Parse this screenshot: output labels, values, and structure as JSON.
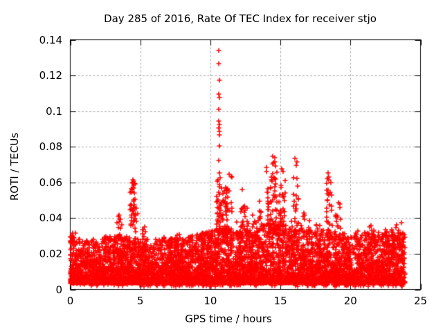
{
  "window": {
    "background": "#ffffff",
    "text_color": "#000000"
  },
  "chart_data": {
    "type": "scatter",
    "title": "Day 285 of 2016, Rate Of TEC Index for receiver stjo",
    "xlabel": "GPS time / hours",
    "ylabel": "ROTI / TECUs",
    "xlim": [
      0,
      25
    ],
    "ylim": [
      0,
      0.14
    ],
    "x_ticks": {
      "values": [
        0,
        5,
        10,
        15,
        20,
        25
      ],
      "labels": [
        "0",
        "5",
        "10",
        "15",
        "20",
        "25"
      ]
    },
    "y_ticks": {
      "values": [
        0,
        0.02,
        0.04,
        0.06,
        0.08,
        0.1,
        0.12,
        0.14
      ],
      "labels": [
        "0",
        "0.02",
        "0.04",
        "0.06",
        "0.08",
        "0.1",
        "0.12",
        "0.14"
      ]
    },
    "grid": {
      "show": true,
      "color": "#aaaaaa",
      "dash": [
        3,
        2.5
      ],
      "x_lines": [
        5,
        10,
        15,
        20
      ],
      "y_lines": [
        0.02,
        0.04,
        0.06,
        0.08,
        0.1,
        0.12
      ]
    },
    "axis_color": "#000000",
    "tick_length": 8,
    "marker": {
      "shape": "plus",
      "color": "#ff0000",
      "size": 7,
      "stroke": 1.6
    },
    "legend": {
      "show": false
    },
    "time_range": [
      0,
      23.9
    ],
    "render_seed": 7,
    "baseline": {
      "n": 6500,
      "y_min": 0.0035,
      "shape": 2.2,
      "low_fraction": 0.03
    },
    "envelope": [
      0.03,
      0.027,
      0.029,
      0.03,
      0.03,
      0.028,
      0.028,
      0.029,
      0.03,
      0.031,
      0.033,
      0.035,
      0.033,
      0.034,
      0.037,
      0.037,
      0.035,
      0.033,
      0.035,
      0.033,
      0.03,
      0.032,
      0.032,
      0.033,
      0.033
    ],
    "clusters": [
      [
        0.0,
        0.4,
        10,
        0.026,
        0.032
      ],
      [
        2.3,
        2.75,
        8,
        0.026,
        0.031
      ],
      [
        3.2,
        3.75,
        16,
        0.028,
        0.0415
      ],
      [
        4.28,
        4.62,
        40,
        0.035,
        0.061
      ],
      [
        4.63,
        4.8,
        8,
        0.03,
        0.046
      ],
      [
        5.1,
        5.4,
        7,
        0.028,
        0.036
      ],
      [
        6.4,
        6.75,
        6,
        0.026,
        0.03
      ],
      [
        7.4,
        7.85,
        8,
        0.026,
        0.0315
      ],
      [
        8.3,
        8.75,
        8,
        0.026,
        0.0315
      ],
      [
        9.15,
        9.6,
        10,
        0.027,
        0.032
      ],
      [
        9.9,
        10.25,
        8,
        0.027,
        0.033
      ],
      [
        10.45,
        10.8,
        38,
        0.03,
        0.063
      ],
      [
        10.85,
        11.25,
        42,
        0.03,
        0.058
      ],
      [
        11.3,
        11.55,
        9,
        0.03,
        0.065
      ],
      [
        11.6,
        11.95,
        8,
        0.028,
        0.038
      ],
      [
        12.15,
        12.5,
        18,
        0.03,
        0.0545
      ],
      [
        12.55,
        12.75,
        8,
        0.029,
        0.046
      ],
      [
        13.0,
        13.3,
        10,
        0.029,
        0.042
      ],
      [
        13.35,
        13.65,
        12,
        0.03,
        0.051
      ],
      [
        14.05,
        14.38,
        30,
        0.031,
        0.068
      ],
      [
        14.4,
        14.78,
        34,
        0.031,
        0.0745
      ],
      [
        14.8,
        15.02,
        14,
        0.03,
        0.055
      ],
      [
        15.02,
        15.35,
        22,
        0.03,
        0.068
      ],
      [
        15.55,
        15.8,
        8,
        0.028,
        0.04
      ],
      [
        15.9,
        16.3,
        26,
        0.03,
        0.0715
      ],
      [
        16.5,
        17.1,
        14,
        0.028,
        0.043
      ],
      [
        17.4,
        17.95,
        10,
        0.027,
        0.038
      ],
      [
        18.25,
        18.72,
        28,
        0.03,
        0.063
      ],
      [
        18.85,
        19.3,
        14,
        0.028,
        0.049
      ],
      [
        20.2,
        20.55,
        6,
        0.026,
        0.033
      ],
      [
        21.3,
        21.8,
        10,
        0.027,
        0.037
      ],
      [
        22.4,
        22.7,
        8,
        0.026,
        0.034
      ],
      [
        22.95,
        23.62,
        18,
        0.027,
        0.0375
      ]
    ],
    "outliers": [
      [
        10.62,
        0.134
      ],
      [
        10.6,
        0.1265
      ],
      [
        10.63,
        0.1175
      ],
      [
        10.61,
        0.1095
      ],
      [
        10.645,
        0.1075
      ],
      [
        10.62,
        0.101
      ],
      [
        10.6,
        0.0945
      ],
      [
        10.635,
        0.0925
      ],
      [
        10.615,
        0.0905
      ],
      [
        10.65,
        0.0885
      ],
      [
        10.625,
        0.0865
      ],
      [
        10.64,
        0.0805
      ],
      [
        10.61,
        0.0725
      ],
      [
        10.63,
        0.0655
      ],
      [
        11.35,
        0.0645
      ],
      [
        12.3,
        0.056
      ],
      [
        13.99,
        0.0685
      ],
      [
        14.03,
        0.066
      ],
      [
        14.45,
        0.0745
      ],
      [
        14.6,
        0.0715
      ],
      [
        15.08,
        0.0675
      ],
      [
        16.05,
        0.0735
      ],
      [
        16.15,
        0.0695
      ],
      [
        18.38,
        0.0655
      ],
      [
        18.45,
        0.0615
      ],
      [
        4.47,
        0.0615
      ],
      [
        4.52,
        0.0585
      ],
      [
        3.48,
        0.0415
      ]
    ]
  }
}
